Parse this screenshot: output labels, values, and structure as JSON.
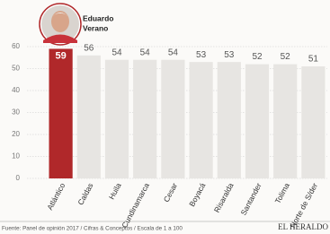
{
  "chart_data": {
    "type": "bar",
    "categories": [
      "Atlántico",
      "Caldas",
      "Huila",
      "Cundinamarca",
      "Cesar",
      "Boyacá",
      "Risaralda",
      "Santander",
      "Tolima",
      "Norte de S/der"
    ],
    "values": [
      59,
      56,
      54,
      54,
      54,
      53,
      53,
      52,
      52,
      51
    ],
    "colors": [
      "#b0282a",
      "#e7e5e2",
      "#e7e5e2",
      "#e7e5e2",
      "#e7e5e2",
      "#e7e5e2",
      "#e7e5e2",
      "#e7e5e2",
      "#e7e5e2",
      "#e7e5e2"
    ],
    "ylim": [
      0,
      60
    ],
    "yticks": [
      0,
      10,
      20,
      30,
      40,
      50,
      60
    ],
    "grid": true,
    "annotations": [
      "Eduardo",
      "Verano"
    ],
    "source": "Fuente: Panel de opinión 2017 / Cifras & Conceptos / Escala de 1 a 100",
    "brand": "EL HERALDO"
  }
}
